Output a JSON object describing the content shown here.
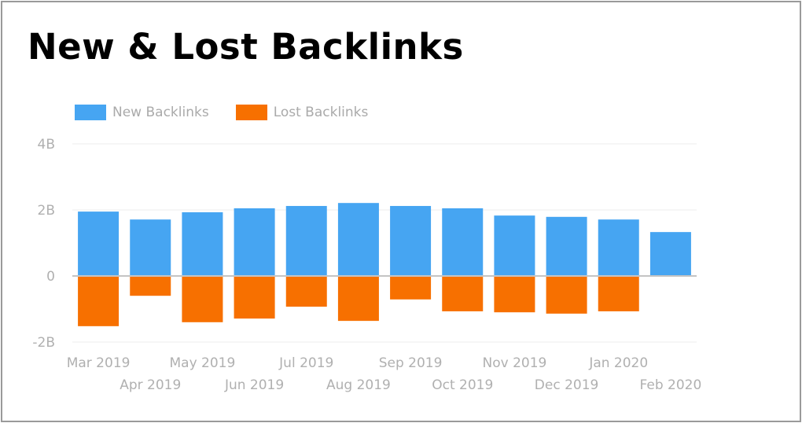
{
  "title": "New & Lost Backlinks",
  "chart_data": {
    "type": "bar",
    "title": "New & Lost Backlinks",
    "categories": [
      "Mar 2019",
      "Apr 2019",
      "May 2019",
      "Jun 2019",
      "Jul 2019",
      "Aug 2019",
      "Sep 2019",
      "Oct 2019",
      "Nov 2019",
      "Dec 2019",
      "Jan 2020",
      "Feb 2020"
    ],
    "series": [
      {
        "name": "New Backlinks",
        "color": "#46a5f2",
        "values": [
          1.95,
          1.71,
          1.93,
          2.05,
          2.12,
          2.21,
          2.12,
          2.05,
          1.83,
          1.79,
          1.71,
          1.33
        ]
      },
      {
        "name": "Lost Backlinks",
        "color": "#f77000",
        "values": [
          -1.52,
          -0.6,
          -1.4,
          -1.29,
          -0.93,
          -1.36,
          -0.71,
          -1.07,
          -1.1,
          -1.14,
          -1.07,
          0
        ]
      }
    ],
    "unit": "B",
    "ylim": [
      -2,
      4
    ],
    "yticks": [
      "-2B",
      "0",
      "2B",
      "4B"
    ],
    "ytick_values": [
      -2,
      0,
      2,
      4
    ],
    "stacked": true,
    "grid": true,
    "legend": "top-left",
    "xlabel": "",
    "ylabel": ""
  }
}
